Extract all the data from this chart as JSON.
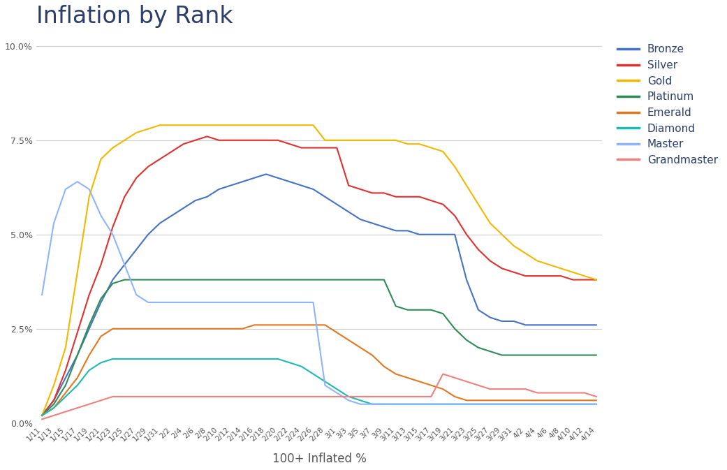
{
  "title": "Inflation by Rank",
  "xlabel": "100+ Inflated %",
  "background_color": "#ffffff",
  "title_color": "#2d3e6b",
  "title_fontsize": 24,
  "xlabel_fontsize": 12,
  "tick_label_color": "#555555",
  "grid_color": "#cccccc",
  "ylim": [
    0.0,
    0.103
  ],
  "yticks": [
    0.0,
    0.025,
    0.05,
    0.075,
    0.1
  ],
  "ytick_labels": [
    "0.0%",
    "2.5%",
    "5.0%",
    "7.5%",
    "10.0%"
  ],
  "x_labels": [
    "1/11",
    "1/13",
    "1/15",
    "1/17",
    "1/19",
    "1/21",
    "1/23",
    "1/25",
    "1/27",
    "1/29",
    "1/31",
    "2/2",
    "2/4",
    "2/6",
    "2/8",
    "2/10",
    "2/12",
    "2/14",
    "2/16",
    "2/18",
    "2/20",
    "2/22",
    "2/24",
    "2/26",
    "2/28",
    "3/1",
    "3/3",
    "3/5",
    "3/7",
    "3/9",
    "3/11",
    "3/13",
    "3/15",
    "3/17",
    "3/19",
    "3/21",
    "3/23",
    "3/25",
    "3/27",
    "3/29",
    "3/31",
    "4/2",
    "4/4",
    "4/6",
    "4/8",
    "4/10",
    "4/12",
    "4/14"
  ],
  "series": {
    "Bronze": {
      "color": "#4472c4",
      "values": [
        0.002,
        0.006,
        0.012,
        0.018,
        0.025,
        0.032,
        0.038,
        0.042,
        0.046,
        0.05,
        0.053,
        0.055,
        0.057,
        0.059,
        0.06,
        0.062,
        0.063,
        0.064,
        0.065,
        0.066,
        0.065,
        0.064,
        0.063,
        0.062,
        0.06,
        0.058,
        0.056,
        0.054,
        0.053,
        0.052,
        0.051,
        0.051,
        0.05,
        0.05,
        0.05,
        0.05,
        0.038,
        0.03,
        0.028,
        0.027,
        0.027,
        0.026,
        0.026,
        0.026,
        0.026,
        0.026,
        0.026,
        0.026
      ]
    },
    "Silver": {
      "color": "#e03030",
      "values": [
        0.002,
        0.006,
        0.014,
        0.024,
        0.034,
        0.042,
        0.052,
        0.06,
        0.065,
        0.068,
        0.07,
        0.072,
        0.074,
        0.075,
        0.076,
        0.075,
        0.075,
        0.075,
        0.075,
        0.075,
        0.075,
        0.074,
        0.073,
        0.073,
        0.073,
        0.073,
        0.063,
        0.062,
        0.061,
        0.061,
        0.06,
        0.06,
        0.06,
        0.059,
        0.058,
        0.055,
        0.05,
        0.046,
        0.043,
        0.041,
        0.04,
        0.039,
        0.039,
        0.039,
        0.039,
        0.038,
        0.038,
        0.038
      ]
    },
    "Gold": {
      "color": "#f0b800",
      "values": [
        0.002,
        0.01,
        0.02,
        0.04,
        0.06,
        0.07,
        0.073,
        0.075,
        0.077,
        0.078,
        0.079,
        0.079,
        0.079,
        0.079,
        0.079,
        0.079,
        0.079,
        0.079,
        0.079,
        0.079,
        0.079,
        0.079,
        0.079,
        0.079,
        0.075,
        0.075,
        0.075,
        0.075,
        0.075,
        0.075,
        0.075,
        0.074,
        0.074,
        0.073,
        0.072,
        0.068,
        0.063,
        0.058,
        0.053,
        0.05,
        0.047,
        0.045,
        0.043,
        0.042,
        0.041,
        0.04,
        0.039,
        0.038
      ]
    },
    "Platinum": {
      "color": "#2e8b57",
      "values": [
        0.002,
        0.005,
        0.01,
        0.018,
        0.026,
        0.033,
        0.037,
        0.038,
        0.038,
        0.038,
        0.038,
        0.038,
        0.038,
        0.038,
        0.038,
        0.038,
        0.038,
        0.038,
        0.038,
        0.038,
        0.038,
        0.038,
        0.038,
        0.038,
        0.038,
        0.038,
        0.038,
        0.038,
        0.038,
        0.038,
        0.031,
        0.03,
        0.03,
        0.03,
        0.029,
        0.025,
        0.022,
        0.02,
        0.019,
        0.018,
        0.018,
        0.018,
        0.018,
        0.018,
        0.018,
        0.018,
        0.018,
        0.018
      ]
    },
    "Emerald": {
      "color": "#e07820",
      "values": [
        0.002,
        0.004,
        0.008,
        0.012,
        0.018,
        0.023,
        0.025,
        0.025,
        0.025,
        0.025,
        0.025,
        0.025,
        0.025,
        0.025,
        0.025,
        0.025,
        0.025,
        0.025,
        0.026,
        0.026,
        0.026,
        0.026,
        0.026,
        0.026,
        0.026,
        0.024,
        0.022,
        0.02,
        0.018,
        0.015,
        0.013,
        0.012,
        0.011,
        0.01,
        0.009,
        0.007,
        0.006,
        0.006,
        0.006,
        0.006,
        0.006,
        0.006,
        0.006,
        0.006,
        0.006,
        0.006,
        0.006,
        0.006
      ]
    },
    "Diamond": {
      "color": "#20b8b0",
      "values": [
        0.002,
        0.004,
        0.007,
        0.01,
        0.014,
        0.016,
        0.017,
        0.017,
        0.017,
        0.017,
        0.017,
        0.017,
        0.017,
        0.017,
        0.017,
        0.017,
        0.017,
        0.017,
        0.017,
        0.017,
        0.017,
        0.016,
        0.015,
        0.013,
        0.011,
        0.009,
        0.007,
        0.006,
        0.005,
        0.005,
        0.005,
        0.005,
        0.005,
        0.005,
        0.005,
        0.005,
        0.005,
        0.005,
        0.005,
        0.005,
        0.005,
        0.005,
        0.005,
        0.005,
        0.005,
        0.005,
        0.005,
        0.005
      ]
    },
    "Master": {
      "color": "#8fb4ff",
      "values": [
        0.034,
        0.053,
        0.062,
        0.064,
        0.062,
        0.055,
        0.05,
        0.042,
        0.034,
        0.032,
        0.032,
        0.032,
        0.032,
        0.032,
        0.032,
        0.032,
        0.032,
        0.032,
        0.032,
        0.032,
        0.032,
        0.032,
        0.032,
        0.032,
        0.01,
        0.008,
        0.006,
        0.005,
        0.005,
        0.005,
        0.005,
        0.005,
        0.005,
        0.005,
        0.005,
        0.005,
        0.005,
        0.005,
        0.005,
        0.005,
        0.005,
        0.005,
        0.005,
        0.005,
        0.005,
        0.005,
        0.005,
        0.005
      ]
    },
    "Grandmaster": {
      "color": "#f08080",
      "values": [
        0.001,
        0.002,
        0.003,
        0.004,
        0.005,
        0.006,
        0.007,
        0.007,
        0.007,
        0.007,
        0.007,
        0.007,
        0.007,
        0.007,
        0.007,
        0.007,
        0.007,
        0.007,
        0.007,
        0.007,
        0.007,
        0.007,
        0.007,
        0.007,
        0.007,
        0.007,
        0.007,
        0.007,
        0.007,
        0.007,
        0.007,
        0.007,
        0.007,
        0.007,
        0.013,
        0.012,
        0.011,
        0.01,
        0.009,
        0.009,
        0.009,
        0.009,
        0.008,
        0.008,
        0.008,
        0.008,
        0.008,
        0.007
      ]
    }
  }
}
